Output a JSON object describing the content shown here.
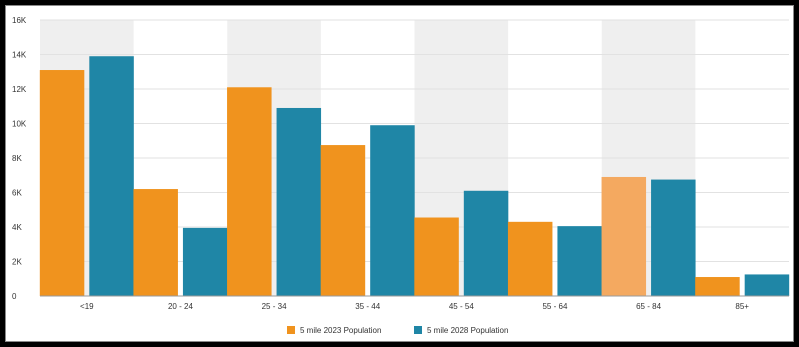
{
  "chart_data": {
    "type": "bar",
    "categories": [
      "<19",
      "20 - 24",
      "25 - 34",
      "35 - 44",
      "45 - 54",
      "55 - 64",
      "65 - 84",
      "85+"
    ],
    "series": [
      {
        "name": "5 mile 2023 Population",
        "color": "#f0931e",
        "values": [
          13100,
          6200,
          12100,
          8750,
          4550,
          4300,
          6900,
          1100
        ]
      },
      {
        "name": "5 mile 2028 Population",
        "color": "#1f86a6",
        "values": [
          13900,
          3950,
          10900,
          9900,
          6100,
          4050,
          6750,
          1250
        ]
      }
    ],
    "highlighted_bar": {
      "category": "65 - 84",
      "series": "5 mile 2023 Population",
      "color": "#f4a960"
    },
    "y_ticks": [
      "0",
      "2K",
      "4K",
      "6K",
      "8K",
      "10K",
      "12K",
      "14K",
      "16K"
    ],
    "ylim": [
      0,
      16000
    ],
    "title": "",
    "xlabel": "",
    "ylabel": "",
    "grid": true,
    "band_color": "#efefef",
    "legend_position": "bottom"
  }
}
